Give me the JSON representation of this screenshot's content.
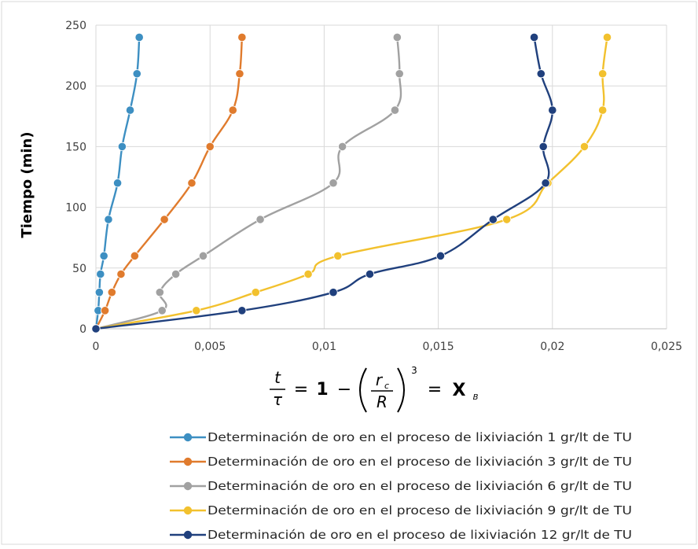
{
  "chart_data": {
    "type": "scatter",
    "ylabel": "Tiempo (min)",
    "xlim": [
      0,
      0.025
    ],
    "ylim": [
      0,
      250
    ],
    "grid": true,
    "legend_position": "bottom",
    "x_ticks": [
      "0",
      "0,005",
      "0,01",
      "0,015",
      "0,02",
      "0,025"
    ],
    "y_ticks": [
      "0",
      "50",
      "100",
      "150",
      "200",
      "250"
    ],
    "x_tick_values": [
      0,
      0.005,
      0.01,
      0.015,
      0.02,
      0.025
    ],
    "y_tick_values": [
      0,
      50,
      100,
      150,
      200,
      250
    ],
    "xlabel_formula": {
      "t": "t",
      "tau": "τ",
      "equals1": "=",
      "one": "1",
      "minus": "−",
      "rc": "r",
      "rc_sub": "c",
      "R": "R",
      "exp": "3",
      "equals2": "=",
      "X": "X",
      "X_sub": "B"
    },
    "series": [
      {
        "name": "Determinación de oro en el proceso de lixiviación  1 gr/lt de TU",
        "color": "#3d8fc2",
        "points": [
          [
            0,
            0
          ],
          [
            0.0001,
            15
          ],
          [
            0.00015,
            30
          ],
          [
            0.0002,
            45
          ],
          [
            0.00035,
            60
          ],
          [
            0.00055,
            90
          ],
          [
            0.00095,
            120
          ],
          [
            0.00115,
            150
          ],
          [
            0.0015,
            180
          ],
          [
            0.0018,
            210
          ],
          [
            0.0019,
            240
          ]
        ]
      },
      {
        "name": "Determinación de oro en el proceso de lixiviación  3 gr/lt de TU",
        "color": "#e07b2d",
        "points": [
          [
            0,
            0
          ],
          [
            0.0004,
            15
          ],
          [
            0.0007,
            30
          ],
          [
            0.0011,
            45
          ],
          [
            0.0017,
            60
          ],
          [
            0.003,
            90
          ],
          [
            0.0042,
            120
          ],
          [
            0.005,
            150
          ],
          [
            0.006,
            180
          ],
          [
            0.0063,
            210
          ],
          [
            0.0064,
            240
          ]
        ]
      },
      {
        "name": "Determinación de oro en el proceso de lixiviación  6 gr/lt de TU",
        "color": "#a1a1a1",
        "points": [
          [
            0,
            0
          ],
          [
            0.0029,
            15
          ],
          [
            0.0028,
            30
          ],
          [
            0.0035,
            45
          ],
          [
            0.0047,
            60
          ],
          [
            0.0072,
            90
          ],
          [
            0.0104,
            120
          ],
          [
            0.0108,
            150
          ],
          [
            0.0131,
            180
          ],
          [
            0.0133,
            210
          ],
          [
            0.0132,
            240
          ]
        ]
      },
      {
        "name": "Determinación de oro en el proceso de lixiviación  9 gr/lt de TU",
        "color": "#f2c12e",
        "points": [
          [
            0,
            0
          ],
          [
            0.0044,
            15
          ],
          [
            0.007,
            30
          ],
          [
            0.0093,
            45
          ],
          [
            0.0106,
            60
          ],
          [
            0.018,
            90
          ],
          [
            0.0198,
            120
          ],
          [
            0.0214,
            150
          ],
          [
            0.0222,
            180
          ],
          [
            0.0222,
            210
          ],
          [
            0.0224,
            240
          ]
        ]
      },
      {
        "name": "Determinación de oro en el proceso de lixiviación  12 gr/lt de TU",
        "color": "#20407d",
        "points": [
          [
            0,
            0
          ],
          [
            0.0064,
            15
          ],
          [
            0.0104,
            30
          ],
          [
            0.012,
            45
          ],
          [
            0.0151,
            60
          ],
          [
            0.0174,
            90
          ],
          [
            0.0197,
            120
          ],
          [
            0.0196,
            150
          ],
          [
            0.02,
            180
          ],
          [
            0.0195,
            210
          ],
          [
            0.0192,
            240
          ]
        ]
      }
    ]
  }
}
